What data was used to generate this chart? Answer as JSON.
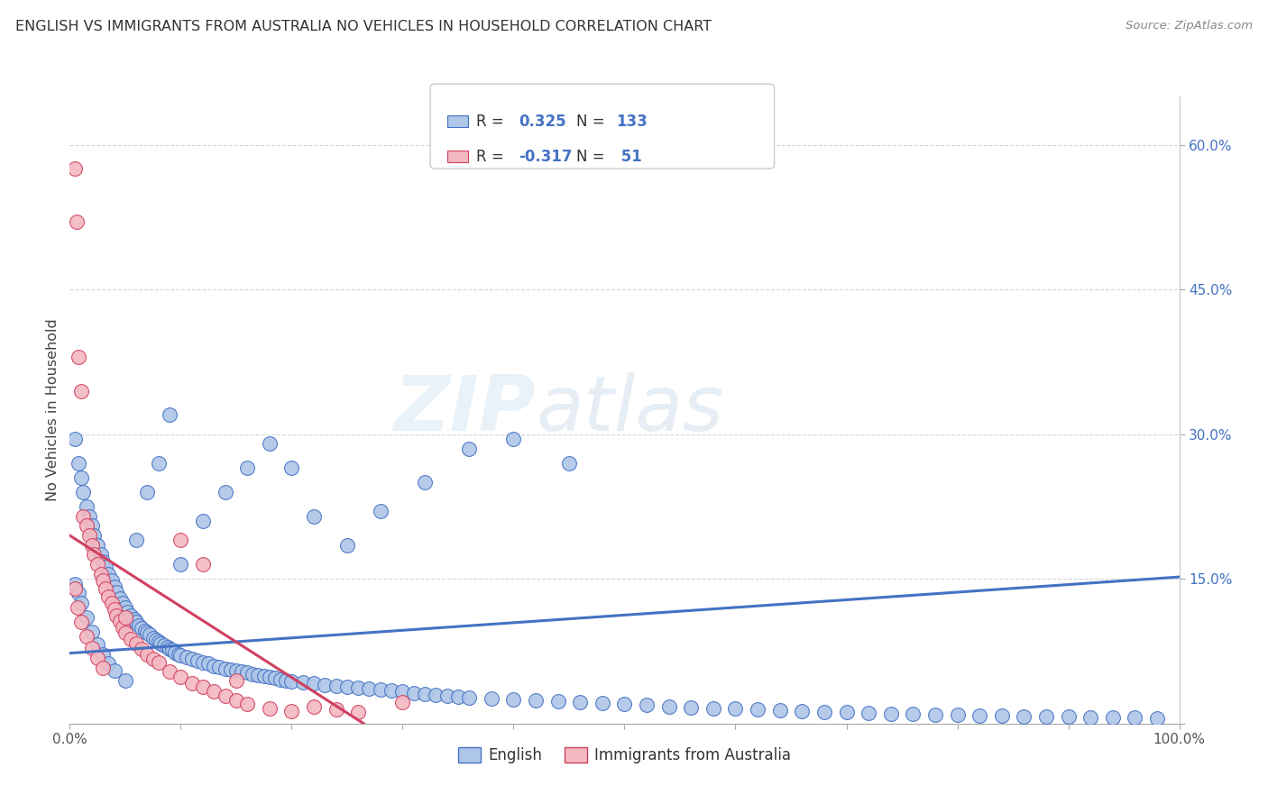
{
  "title": "ENGLISH VS IMMIGRANTS FROM AUSTRALIA NO VEHICLES IN HOUSEHOLD CORRELATION CHART",
  "source": "Source: ZipAtlas.com",
  "ylabel": "No Vehicles in Household",
  "color_english": "#aec6e8",
  "color_line_english": "#4472c4",
  "color_immigrants": "#f4b8c1",
  "color_line_immigrants": "#d04060",
  "legend_label1": "English",
  "legend_label2": "Immigrants from Australia",
  "watermark_zip": "ZIP",
  "watermark_atlas": "atlas",
  "legend_text_color": "#4472c4",
  "english_x": [
    0.005,
    0.008,
    0.01,
    0.012,
    0.015,
    0.018,
    0.02,
    0.022,
    0.025,
    0.028,
    0.03,
    0.032,
    0.035,
    0.038,
    0.04,
    0.042,
    0.045,
    0.048,
    0.05,
    0.052,
    0.055,
    0.058,
    0.06,
    0.062,
    0.065,
    0.068,
    0.07,
    0.072,
    0.075,
    0.078,
    0.08,
    0.082,
    0.085,
    0.088,
    0.09,
    0.092,
    0.095,
    0.098,
    0.1,
    0.105,
    0.11,
    0.115,
    0.12,
    0.125,
    0.13,
    0.135,
    0.14,
    0.145,
    0.15,
    0.155,
    0.16,
    0.165,
    0.17,
    0.175,
    0.18,
    0.185,
    0.19,
    0.195,
    0.2,
    0.21,
    0.22,
    0.23,
    0.24,
    0.25,
    0.26,
    0.27,
    0.28,
    0.29,
    0.3,
    0.31,
    0.32,
    0.33,
    0.34,
    0.35,
    0.36,
    0.38,
    0.4,
    0.42,
    0.44,
    0.46,
    0.48,
    0.5,
    0.52,
    0.54,
    0.56,
    0.58,
    0.6,
    0.62,
    0.64,
    0.66,
    0.68,
    0.7,
    0.72,
    0.74,
    0.76,
    0.78,
    0.8,
    0.82,
    0.84,
    0.86,
    0.88,
    0.9,
    0.92,
    0.94,
    0.96,
    0.98,
    0.005,
    0.008,
    0.01,
    0.015,
    0.02,
    0.025,
    0.03,
    0.035,
    0.04,
    0.05,
    0.06,
    0.07,
    0.08,
    0.09,
    0.1,
    0.12,
    0.14,
    0.16,
    0.18,
    0.2,
    0.22,
    0.25,
    0.28,
    0.32,
    0.36,
    0.4,
    0.45
  ],
  "english_y": [
    0.295,
    0.27,
    0.255,
    0.24,
    0.225,
    0.215,
    0.205,
    0.195,
    0.185,
    0.175,
    0.168,
    0.162,
    0.155,
    0.148,
    0.142,
    0.136,
    0.13,
    0.125,
    0.12,
    0.116,
    0.112,
    0.108,
    0.105,
    0.102,
    0.099,
    0.096,
    0.094,
    0.092,
    0.089,
    0.087,
    0.085,
    0.083,
    0.081,
    0.079,
    0.077,
    0.076,
    0.074,
    0.072,
    0.071,
    0.069,
    0.067,
    0.065,
    0.063,
    0.062,
    0.06,
    0.059,
    0.057,
    0.056,
    0.055,
    0.054,
    0.053,
    0.051,
    0.05,
    0.049,
    0.048,
    0.047,
    0.046,
    0.045,
    0.044,
    0.043,
    0.042,
    0.04,
    0.039,
    0.038,
    0.037,
    0.036,
    0.035,
    0.034,
    0.033,
    0.032,
    0.031,
    0.03,
    0.029,
    0.028,
    0.027,
    0.026,
    0.025,
    0.024,
    0.023,
    0.022,
    0.021,
    0.02,
    0.019,
    0.018,
    0.017,
    0.016,
    0.016,
    0.015,
    0.014,
    0.013,
    0.012,
    0.012,
    0.011,
    0.01,
    0.01,
    0.009,
    0.009,
    0.008,
    0.008,
    0.007,
    0.007,
    0.007,
    0.006,
    0.006,
    0.006,
    0.005,
    0.145,
    0.135,
    0.125,
    0.11,
    0.095,
    0.082,
    0.072,
    0.062,
    0.055,
    0.045,
    0.19,
    0.24,
    0.27,
    0.32,
    0.165,
    0.21,
    0.24,
    0.265,
    0.29,
    0.265,
    0.215,
    0.185,
    0.22,
    0.25,
    0.285,
    0.295,
    0.27
  ],
  "immigrants_x": [
    0.005,
    0.006,
    0.008,
    0.01,
    0.012,
    0.015,
    0.018,
    0.02,
    0.022,
    0.025,
    0.028,
    0.03,
    0.032,
    0.035,
    0.038,
    0.04,
    0.042,
    0.045,
    0.048,
    0.05,
    0.055,
    0.06,
    0.065,
    0.07,
    0.075,
    0.08,
    0.09,
    0.1,
    0.11,
    0.12,
    0.13,
    0.14,
    0.15,
    0.16,
    0.18,
    0.2,
    0.22,
    0.24,
    0.26,
    0.3,
    0.005,
    0.007,
    0.01,
    0.015,
    0.02,
    0.025,
    0.03,
    0.05,
    0.1,
    0.12,
    0.15
  ],
  "immigrants_y": [
    0.575,
    0.52,
    0.38,
    0.345,
    0.215,
    0.205,
    0.195,
    0.185,
    0.175,
    0.165,
    0.155,
    0.148,
    0.14,
    0.132,
    0.125,
    0.118,
    0.112,
    0.106,
    0.1,
    0.094,
    0.088,
    0.083,
    0.077,
    0.072,
    0.067,
    0.063,
    0.054,
    0.048,
    0.042,
    0.038,
    0.033,
    0.029,
    0.024,
    0.02,
    0.016,
    0.013,
    0.018,
    0.015,
    0.012,
    0.022,
    0.14,
    0.12,
    0.105,
    0.09,
    0.078,
    0.068,
    0.058,
    0.11,
    0.19,
    0.165,
    0.045
  ],
  "eng_line_x": [
    0.0,
    1.0
  ],
  "eng_line_y": [
    0.073,
    0.152
  ],
  "imm_line_x": [
    0.0,
    0.265
  ],
  "imm_line_y": [
    0.195,
    0.0
  ],
  "xlim": [
    0.0,
    1.0
  ],
  "ylim": [
    0.0,
    0.65
  ],
  "yticks": [
    0.0,
    0.15,
    0.3,
    0.45,
    0.6
  ],
  "ytick_labels": [
    "",
    "15.0%",
    "30.0%",
    "45.0%",
    "60.0%"
  ],
  "xtick_labels": [
    "0.0%",
    "",
    "",
    "",
    "",
    "",
    "",
    "",
    "",
    "",
    "100.0%"
  ]
}
